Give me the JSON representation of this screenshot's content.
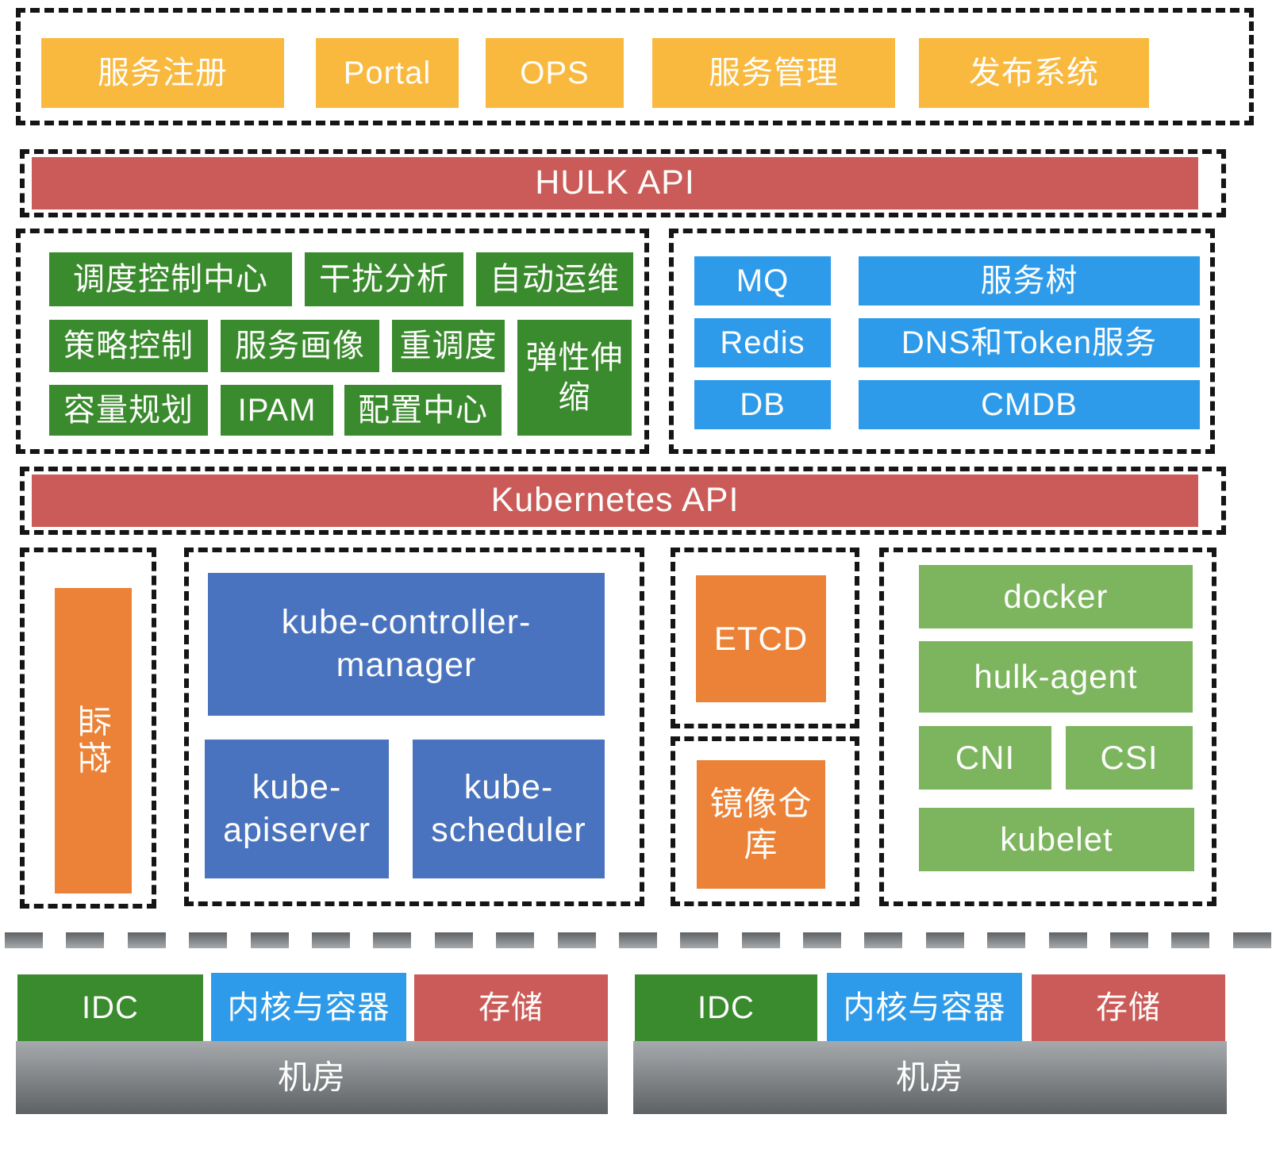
{
  "colors": {
    "yellow": "#F9B93E",
    "red": "#CB5B58",
    "green_dark": "#3A8A2E",
    "blue_bright": "#2E9BEA",
    "blue_steel": "#4A73BF",
    "orange": "#EC8237",
    "green_light": "#7CB55E",
    "gray_dark": "#5E6265",
    "gray_light": "#A6AAAD",
    "dash_black": "#151515"
  },
  "top_apps": {
    "items": [
      "服务注册",
      "Portal",
      "OPS",
      "服务管理",
      "发布系统"
    ]
  },
  "hulk_api": {
    "label": "HULK API"
  },
  "platform": {
    "row1": [
      "调度控制中心",
      "干扰分析",
      "自动运维"
    ],
    "row2": [
      "策略控制",
      "服务画像",
      "重调度"
    ],
    "elastic": "弹性伸缩",
    "row3": [
      "容量规划",
      "IPAM",
      "配置中心"
    ]
  },
  "middleware": {
    "left": [
      "MQ",
      "Redis",
      "DB"
    ],
    "right": [
      "服务树",
      "DNS和Token服务",
      "CMDB"
    ]
  },
  "kubernetes_api": {
    "label": "Kubernetes API"
  },
  "monitoring": {
    "label": "监控"
  },
  "control_plane": {
    "controller_manager": "kube-controller-manager",
    "apiserver": "kube-apiserver",
    "scheduler": "kube-scheduler"
  },
  "etcd": {
    "label": "ETCD"
  },
  "image_registry": {
    "label": "镜像仓库"
  },
  "node": {
    "docker": "docker",
    "hulk_agent": "hulk-agent",
    "cni": "CNI",
    "csi": "CSI",
    "kubelet": "kubelet"
  },
  "infrastructure": {
    "left": {
      "idc": "IDC",
      "kernel_container": "内核与容器",
      "storage": "存储",
      "datacenter": "机房"
    },
    "right": {
      "idc": "IDC",
      "kernel_container": "内核与容器",
      "storage": "存储",
      "datacenter": "机房"
    }
  }
}
